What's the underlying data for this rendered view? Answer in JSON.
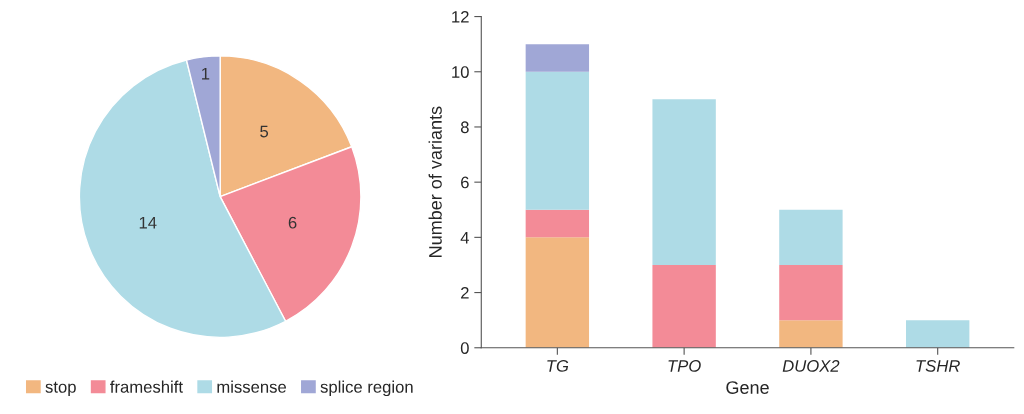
{
  "chart_data": [
    {
      "type": "pie",
      "categories": [
        "stop",
        "frameshift",
        "missense",
        "splice region"
      ],
      "values": [
        5,
        6,
        14,
        1
      ],
      "colors": [
        "#f2b780",
        "#f38b97",
        "#aedbe6",
        "#a0a7d6"
      ],
      "data_labels": true,
      "legend": "bottom"
    },
    {
      "type": "bar",
      "stacked": true,
      "categories": [
        "TG",
        "TPO",
        "DUOX2",
        "TSHR"
      ],
      "xlabel": "Gene",
      "ylabel": "Number of variants",
      "ylim": [
        0,
        12
      ],
      "yticks": [
        0,
        2,
        4,
        6,
        8,
        10,
        12
      ],
      "grid": false,
      "legend": false,
      "series": [
        {
          "color": "#f2b780",
          "values": [
            4,
            0,
            1,
            0
          ]
        },
        {
          "color": "#f38b97",
          "values": [
            1,
            3,
            2,
            0
          ]
        },
        {
          "color": "#aedbe6",
          "values": [
            5,
            6,
            2,
            1
          ]
        },
        {
          "color": "#a0a7d6",
          "values": [
            1,
            0,
            0,
            0
          ]
        }
      ]
    }
  ]
}
